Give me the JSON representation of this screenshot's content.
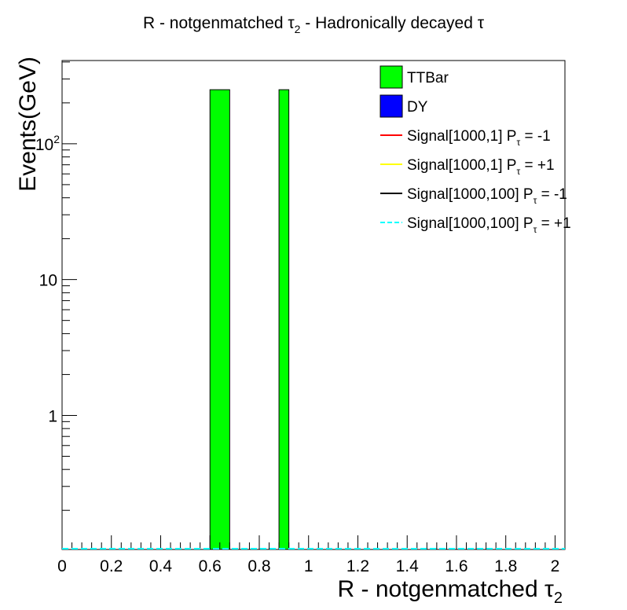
{
  "chart_data": {
    "type": "bar",
    "title": "R - notgenmatched τ₂ - Hadronically decayed τ",
    "title_parts": {
      "before": "R - notgenmatched ",
      "tau": "τ",
      "sub": "2",
      "after": " - Hadronically decayed τ"
    },
    "xlabel": "R - notgenmatched τ₂",
    "xlabel_parts": {
      "before": "R - notgenmatched ",
      "tau": "τ",
      "sub": "2"
    },
    "ylabel": "Events(GeV)",
    "xlim": [
      0,
      2.04
    ],
    "ylim": [
      0.103,
      410
    ],
    "yscale": "log",
    "x_ticks": [
      {
        "v": 0,
        "label": "0"
      },
      {
        "v": 0.2,
        "label": "0.2"
      },
      {
        "v": 0.4,
        "label": "0.4"
      },
      {
        "v": 0.6,
        "label": "0.6"
      },
      {
        "v": 0.8,
        "label": "0.8"
      },
      {
        "v": 1.0,
        "label": "1"
      },
      {
        "v": 1.2,
        "label": "1.2"
      },
      {
        "v": 1.4,
        "label": "1.4"
      },
      {
        "v": 1.6,
        "label": "1.6"
      },
      {
        "v": 1.8,
        "label": "1.8"
      },
      {
        "v": 2.0,
        "label": "2"
      }
    ],
    "y_ticks": [
      {
        "v": 1,
        "label": "1"
      },
      {
        "v": 10,
        "label": "10"
      },
      {
        "v": 100,
        "label": "10",
        "sup": "2"
      }
    ],
    "series": [
      {
        "name": "TTBar",
        "color": "#00ff00",
        "style": "fill",
        "bins": [
          {
            "x0": 0.6,
            "x1": 0.68,
            "value": 250
          },
          {
            "x0": 0.88,
            "x1": 0.92,
            "value": 250
          }
        ]
      },
      {
        "name": "DY",
        "color": "#0000ff",
        "style": "fill",
        "bins": []
      },
      {
        "name": "Signal[1000,1] P",
        "tau": "τ",
        "suffix": " = -1",
        "color": "#ff0000",
        "style": "line",
        "values": []
      },
      {
        "name": "Signal[1000,1] P",
        "tau": "τ",
        "suffix": " = +1",
        "color": "#ffff00",
        "style": "line",
        "values": []
      },
      {
        "name": "Signal[1000,100] P",
        "tau": "τ",
        "suffix": " = -1",
        "color": "#000000",
        "style": "line",
        "values": []
      },
      {
        "name": "Signal[1000,100] P",
        "tau": "τ",
        "suffix": " = +1",
        "color": "#00ffff",
        "style": "dashed",
        "values": []
      }
    ],
    "legend_position": "top-right",
    "grid": false
  }
}
